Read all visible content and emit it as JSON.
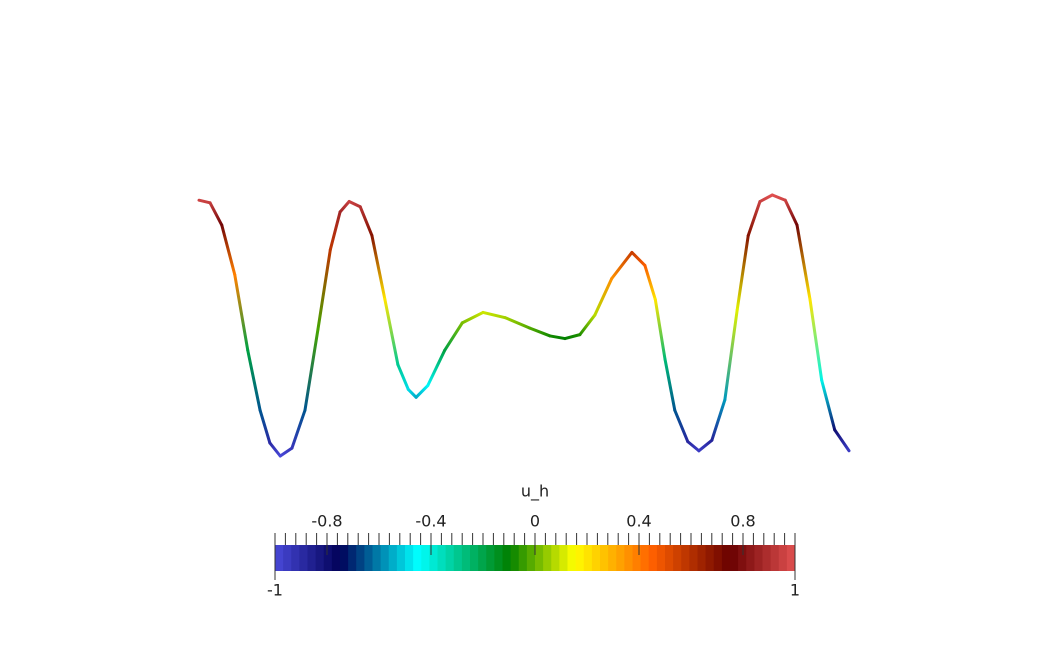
{
  "chart_data": {
    "type": "colored-line",
    "x": [
      0,
      0.017,
      0.035,
      0.055,
      0.075,
      0.094,
      0.109,
      0.125,
      0.143,
      0.163,
      0.183,
      0.202,
      0.217,
      0.231,
      0.248,
      0.266,
      0.286,
      0.306,
      0.322,
      0.334,
      0.352,
      0.378,
      0.405,
      0.437,
      0.471,
      0.509,
      0.54,
      0.563,
      0.586,
      0.609,
      0.635,
      0.666,
      0.686,
      0.702,
      0.717,
      0.732,
      0.752,
      0.769,
      0.789,
      0.809,
      0.828,
      0.845,
      0.863,
      0.882,
      0.902,
      0.92,
      0.94,
      0.958,
      0.978,
      1
    ],
    "values": [
      0.96,
      0.94,
      0.77,
      0.39,
      -0.19,
      -0.65,
      -0.9,
      -1,
      -0.94,
      -0.65,
      -0.03,
      0.58,
      0.87,
      0.95,
      0.91,
      0.69,
      0.2,
      -0.3,
      -0.49,
      -0.55,
      -0.46,
      -0.19,
      0.02,
      0.1,
      0.06,
      -0.02,
      -0.08,
      -0.1,
      -0.07,
      0.08,
      0.36,
      0.56,
      0.46,
      0.2,
      -0.26,
      -0.65,
      -0.89,
      -0.96,
      -0.88,
      -0.57,
      0.12,
      0.69,
      0.95,
      1,
      0.96,
      0.77,
      0.2,
      -0.42,
      -0.8,
      -0.96
    ],
    "xlim": [
      0,
      1
    ],
    "ylim": [
      -1,
      1
    ],
    "colorbar": {
      "title": "u_h",
      "range": [
        -1,
        1
      ],
      "ticks": [
        -0.8,
        -0.4,
        0,
        0.4,
        0.8
      ],
      "bands": 64,
      "minor_ticks": 50,
      "colormap": [
        {
          "value": -1,
          "color": "#4848d8"
        },
        {
          "value": -0.75,
          "color": "#000058"
        },
        {
          "value": -0.45,
          "color": "#00ffff"
        },
        {
          "value": -0.1,
          "color": "#008000"
        },
        {
          "value": 0.15,
          "color": "#ffff00"
        },
        {
          "value": 0.45,
          "color": "#ff6000"
        },
        {
          "value": 0.75,
          "color": "#680000"
        },
        {
          "value": 1,
          "color": "#e05050"
        }
      ]
    }
  }
}
